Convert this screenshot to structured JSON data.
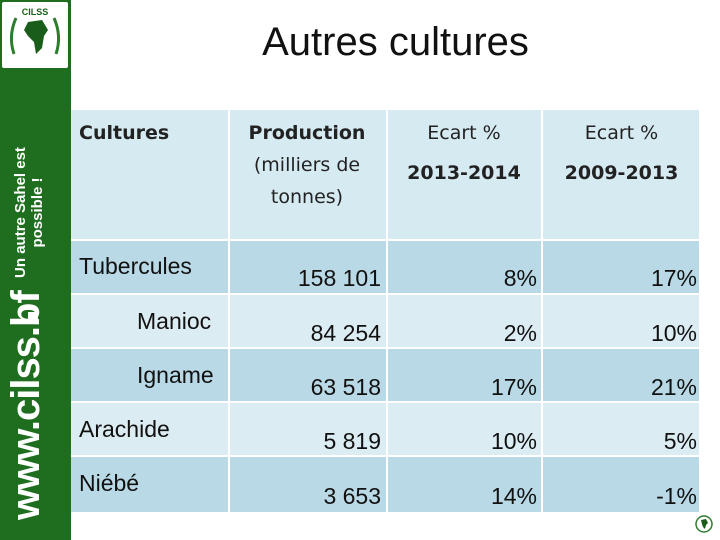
{
  "sidebar": {
    "logo_text": "CILSS",
    "url": "www.cilss.bf",
    "tagline_line1": "Un autre Sahel est",
    "tagline_line2": "possible !"
  },
  "title": "Autres cultures",
  "table": {
    "headers": {
      "cultures": "Cultures",
      "production_line1": "Production",
      "production_line2": "(milliers de",
      "production_line3": "tonnes)",
      "ecart1_line1": "Ecart %",
      "ecart1_line2": "2013-2014",
      "ecart2_line1": "Ecart %",
      "ecart2_line2": "2009-2013"
    },
    "rows": [
      {
        "culture": "Tubercules",
        "production": "158 101",
        "ecart_2013_2014": "8%",
        "ecart_2009_2013": "17%"
      },
      {
        "culture": "Manioc",
        "production": "84 254",
        "ecart_2013_2014": "2%",
        "ecart_2009_2013": "10%"
      },
      {
        "culture": "Igname",
        "production": "63 518",
        "ecart_2013_2014": "17%",
        "ecart_2009_2013": "21%"
      },
      {
        "culture": "Arachide",
        "production": "5 819",
        "ecart_2013_2014": "10%",
        "ecart_2009_2013": "5%"
      },
      {
        "culture": "Niébé",
        "production": "3 653",
        "ecart_2013_2014": "14%",
        "ecart_2009_2013": "-1%"
      }
    ]
  },
  "colors": {
    "sidebar": "#1f6e1f",
    "header_bg": "#d6eaf2",
    "row_dark": "#b9d9e6",
    "row_light": "#dcecf3"
  },
  "icons": {
    "logo": "cilss-logo-icon",
    "footer": "cilss-small-logo-icon"
  }
}
